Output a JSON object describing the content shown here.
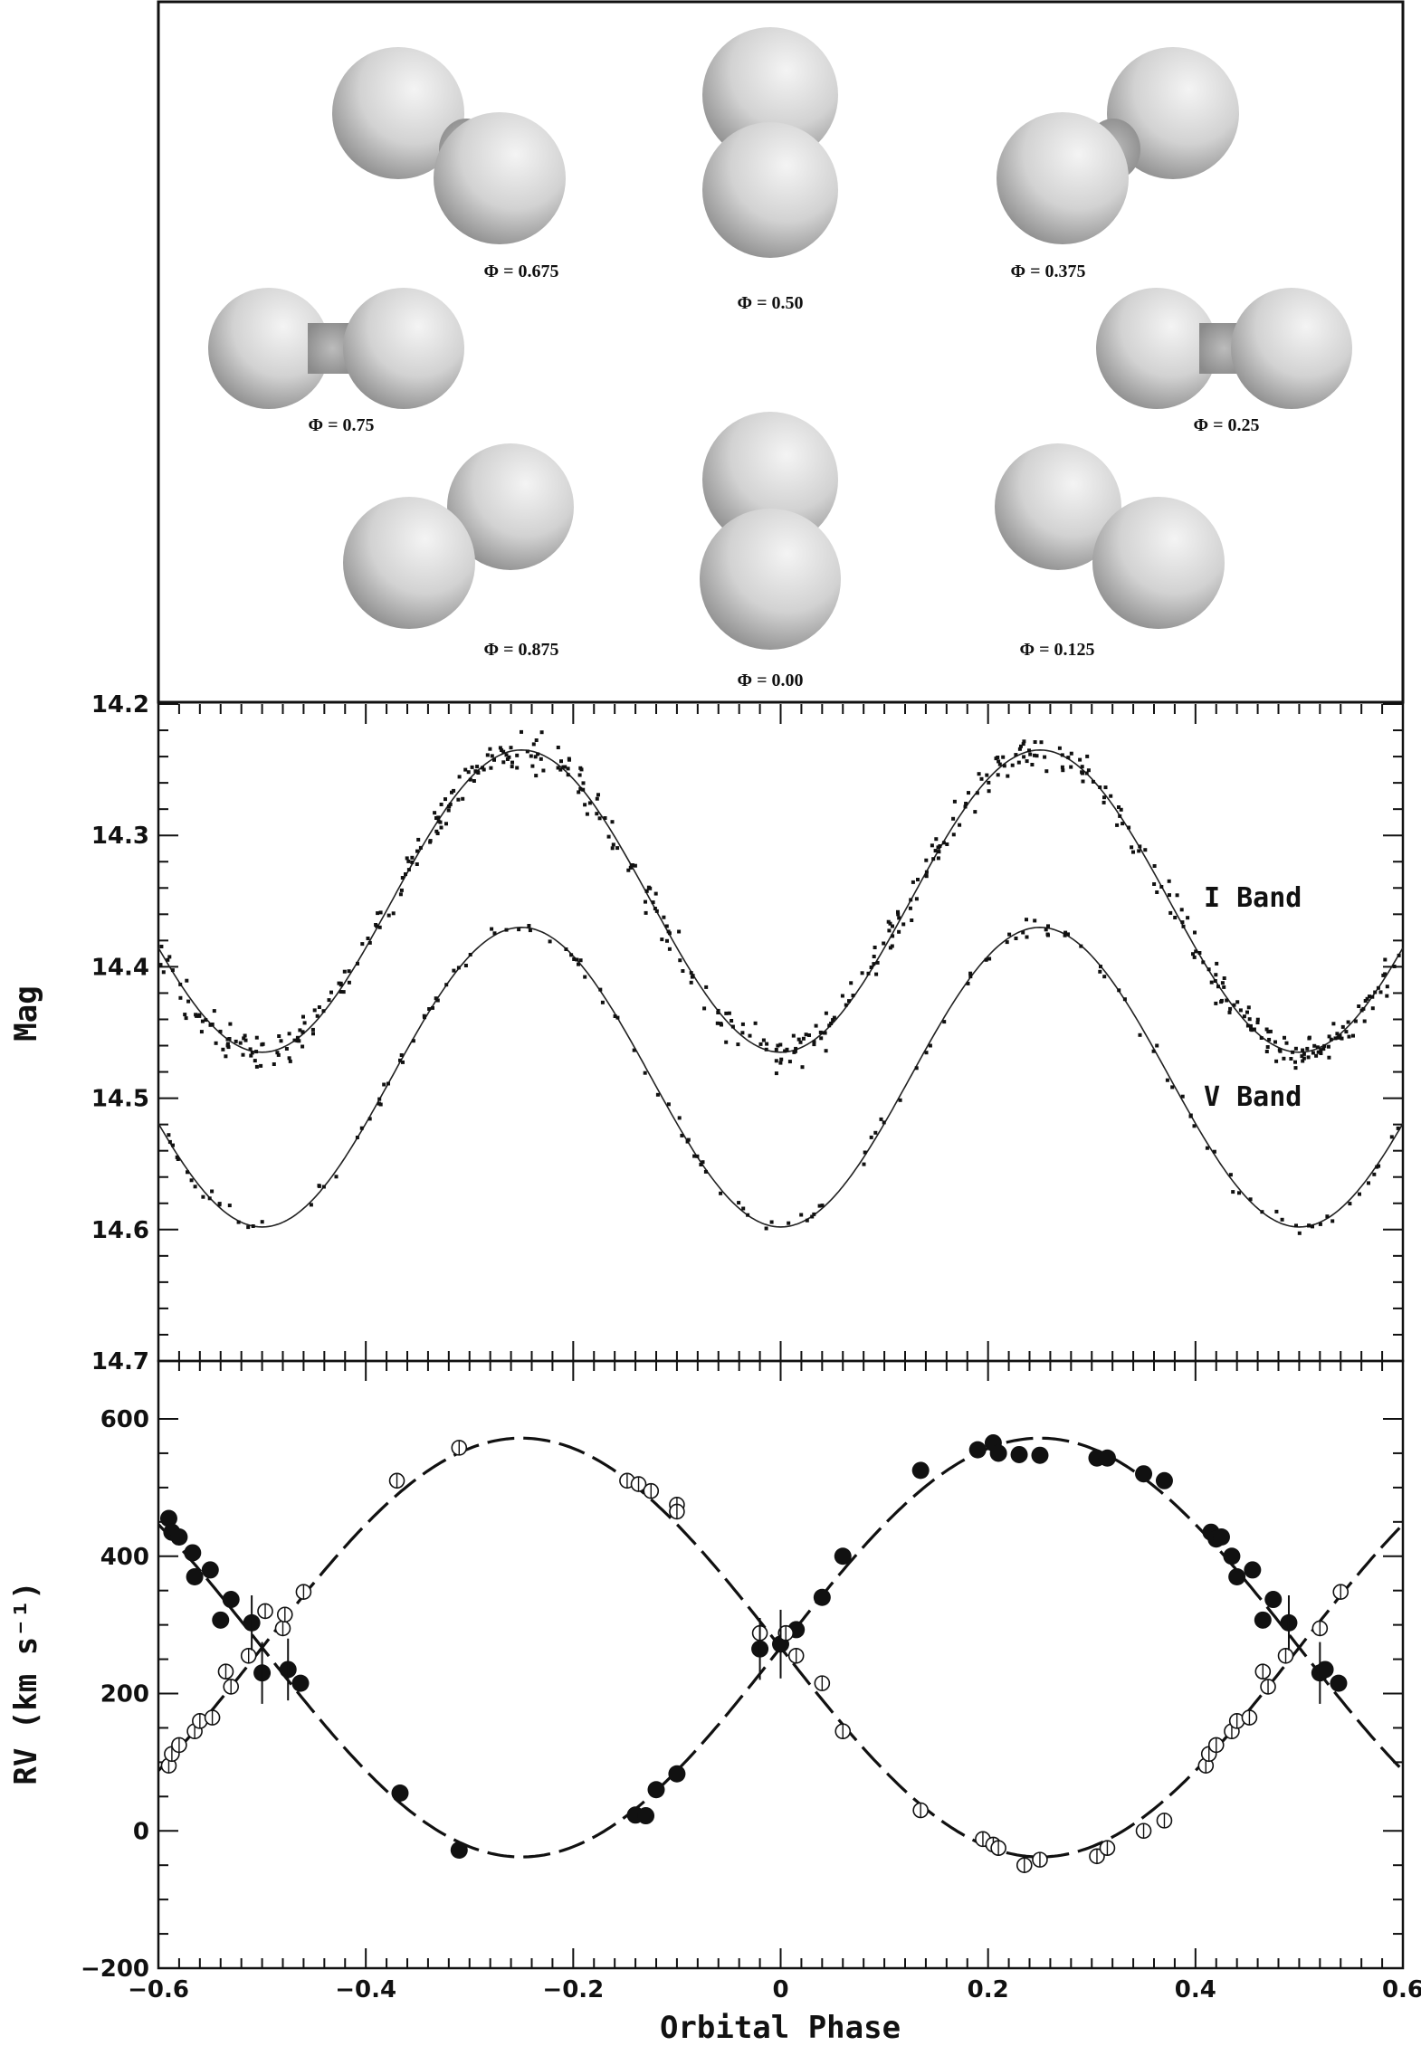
{
  "chart_data": [
    {
      "type": "diagram",
      "panel": "binary-geometry",
      "phase_labels": [
        {
          "text": "Φ = 0.675",
          "phase": 0.675
        },
        {
          "text": "Φ = 0.50",
          "phase": 0.5
        },
        {
          "text": "Φ = 0.375",
          "phase": 0.375
        },
        {
          "text": "Φ = 0.75",
          "phase": 0.75
        },
        {
          "text": "Φ = 0.25",
          "phase": 0.25
        },
        {
          "text": "Φ = 0.875",
          "phase": 0.875
        },
        {
          "text": "Φ = 0.00",
          "phase": 0.0
        },
        {
          "text": "Φ = 0.125",
          "phase": 0.125
        }
      ]
    },
    {
      "type": "scatter",
      "panel": "light-curve",
      "ylabel": "Mag",
      "xlim": [
        -0.6,
        0.6
      ],
      "ylim": [
        14.2,
        14.7
      ],
      "y_inverted": true,
      "yticks": [
        "14.2",
        "14.3",
        "14.4",
        "14.5",
        "14.6",
        "14.7"
      ],
      "series": [
        {
          "name": "I Band",
          "max_mag": 14.235,
          "min_mag": 14.465,
          "color": "#111111"
        },
        {
          "name": "V Band",
          "max_mag": 14.37,
          "min_mag": 14.598,
          "color": "#111111"
        }
      ]
    },
    {
      "type": "scatter",
      "panel": "radial-velocity",
      "xlabel": "Orbital Phase",
      "ylabel": "RV (km s⁻¹)",
      "xlim": [
        -0.6,
        0.6
      ],
      "ylim": [
        -200,
        650
      ],
      "xticks": [
        "−0.6",
        "−0.4",
        "−0.2",
        "0",
        "0.2",
        "0.4",
        "0.6"
      ],
      "yticks": [
        "−200",
        "0",
        "200",
        "400",
        "600"
      ],
      "systemic_velocity": 267,
      "K_primary": 305,
      "K_secondary": 305,
      "series": [
        {
          "marker": "filled",
          "points": [
            [
              -0.59,
              455
            ],
            [
              -0.587,
              435
            ],
            [
              -0.58,
              428
            ],
            [
              -0.567,
              405
            ],
            [
              -0.565,
              370
            ],
            [
              -0.55,
              380
            ],
            [
              -0.54,
              307
            ],
            [
              -0.53,
              337
            ],
            [
              -0.51,
              303
            ],
            [
              -0.5,
              230
            ],
            [
              -0.475,
              235
            ],
            [
              -0.463,
              215
            ],
            [
              -0.367,
              55
            ],
            [
              -0.31,
              -28
            ],
            [
              -0.14,
              23
            ],
            [
              -0.13,
              22
            ],
            [
              -0.12,
              60
            ],
            [
              -0.1,
              83
            ],
            [
              -0.02,
              265
            ],
            [
              0.0,
              272
            ],
            [
              0.015,
              293
            ],
            [
              0.04,
              340
            ],
            [
              0.06,
              400
            ],
            [
              0.135,
              525
            ],
            [
              0.19,
              555
            ],
            [
              0.205,
              565
            ],
            [
              0.21,
              550
            ],
            [
              0.23,
              548
            ],
            [
              0.25,
              547
            ],
            [
              0.305,
              543
            ],
            [
              0.315,
              543
            ],
            [
              0.35,
              520
            ],
            [
              0.37,
              510
            ],
            [
              0.415,
              435
            ],
            [
              0.42,
              425
            ],
            [
              0.425,
              428
            ],
            [
              0.435,
              400
            ],
            [
              0.44,
              370
            ],
            [
              0.455,
              380
            ],
            [
              0.465,
              307
            ],
            [
              0.475,
              337
            ],
            [
              0.49,
              303
            ],
            [
              0.52,
              230
            ],
            [
              0.525,
              235
            ],
            [
              0.538,
              215
            ]
          ]
        },
        {
          "marker": "open",
          "points": [
            [
              -0.59,
              95
            ],
            [
              -0.587,
              112
            ],
            [
              -0.58,
              125
            ],
            [
              -0.565,
              145
            ],
            [
              -0.56,
              160
            ],
            [
              -0.548,
              165
            ],
            [
              -0.535,
              232
            ],
            [
              -0.53,
              210
            ],
            [
              -0.513,
              255
            ],
            [
              -0.497,
              320
            ],
            [
              -0.48,
              295
            ],
            [
              -0.478,
              315
            ],
            [
              -0.46,
              348
            ],
            [
              -0.37,
              510
            ],
            [
              -0.31,
              558
            ],
            [
              -0.148,
              510
            ],
            [
              -0.137,
              505
            ],
            [
              -0.125,
              495
            ],
            [
              -0.1,
              475
            ],
            [
              -0.1,
              465
            ],
            [
              -0.02,
              288
            ],
            [
              0.005,
              288
            ],
            [
              0.015,
              255
            ],
            [
              0.04,
              215
            ],
            [
              0.06,
              145
            ],
            [
              0.135,
              30
            ],
            [
              0.195,
              -12
            ],
            [
              0.205,
              -20
            ],
            [
              0.21,
              -25
            ],
            [
              0.235,
              -50
            ],
            [
              0.25,
              -42
            ],
            [
              0.305,
              -37
            ],
            [
              0.315,
              -25
            ],
            [
              0.35,
              0
            ],
            [
              0.37,
              15
            ],
            [
              0.41,
              95
            ],
            [
              0.413,
              112
            ],
            [
              0.42,
              125
            ],
            [
              0.435,
              145
            ],
            [
              0.44,
              160
            ],
            [
              0.452,
              165
            ],
            [
              0.465,
              232
            ],
            [
              0.47,
              210
            ],
            [
              0.487,
              255
            ],
            [
              0.52,
              295
            ],
            [
              0.54,
              348
            ]
          ]
        }
      ]
    }
  ],
  "labels": {
    "phases": [
      "Φ = 0.675",
      "Φ = 0.50",
      "Φ = 0.375",
      "Φ = 0.75",
      "Φ = 0.25",
      "Φ = 0.875",
      "Φ = 0.00",
      "Φ = 0.125"
    ],
    "i_band": "I Band",
    "v_band": "V Band",
    "mag_axis": "Mag",
    "rv_axis": "RV (km s⁻¹)",
    "x_axis": "Orbital Phase",
    "mag_ticks": [
      "14.2",
      "14.3",
      "14.4",
      "14.5",
      "14.6",
      "14.7"
    ],
    "rv_ticks": [
      "−200",
      "0",
      "200",
      "400",
      "600"
    ],
    "x_ticks": [
      "−0.6",
      "−0.4",
      "−0.2",
      "0",
      "0.2",
      "0.4",
      "0.6"
    ]
  }
}
